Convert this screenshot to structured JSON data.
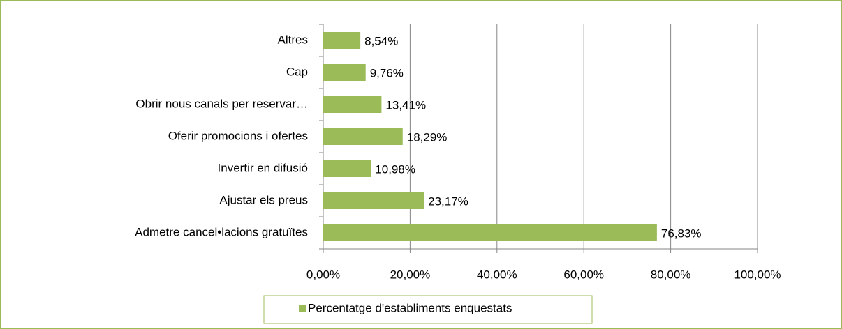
{
  "chart_data": {
    "type": "bar",
    "orientation": "horizontal",
    "categories": [
      "Altres",
      "Cap",
      "Obrir nous canals per reservar…",
      "Oferir promocions i ofertes",
      "Invertir en difusió",
      "Ajustar els preus",
      "Admetre cancel•lacions gratuïtes"
    ],
    "series": [
      {
        "name": "Percentatge d'establiments enquestats",
        "color": "#9bbb59",
        "values": [
          8.54,
          9.76,
          13.41,
          18.29,
          10.98,
          23.17,
          76.83
        ],
        "value_labels": [
          "8,54%",
          "9,76%",
          "13,41%",
          "18,29%",
          "10,98%",
          "23,17%",
          "76,83%"
        ]
      }
    ],
    "xlim": [
      0,
      100
    ],
    "xticks": [
      {
        "value": 0,
        "label": "0,00%"
      },
      {
        "value": 20,
        "label": "20,00%"
      },
      {
        "value": 40,
        "label": "40,00%"
      },
      {
        "value": 60,
        "label": "60,00%"
      },
      {
        "value": 80,
        "label": "80,00%"
      },
      {
        "value": 100,
        "label": "100,00%"
      }
    ],
    "grid": true,
    "legend": "bottom"
  }
}
